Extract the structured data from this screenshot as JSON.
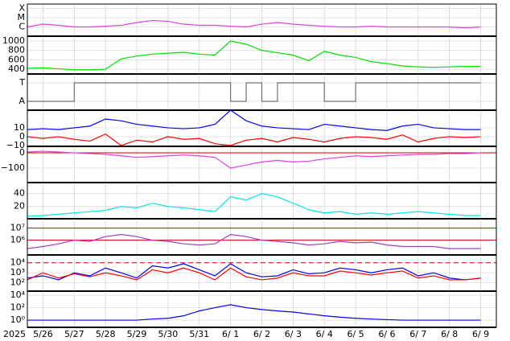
{
  "x_axis": {
    "year": "2025",
    "categories": [
      null,
      "5/26",
      null,
      "5/27",
      null,
      "5/28",
      null,
      "5/29",
      null,
      "5/30",
      null,
      "5/31",
      null,
      "6/ 1",
      null,
      "6/ 2",
      null,
      "6/ 3",
      null,
      "6/ 4",
      null,
      "6/ 5",
      null,
      "6/ 6",
      null,
      "6/ 7",
      null,
      "6/ 8",
      null,
      "6/ 9"
    ]
  },
  "chart_data": [
    {
      "type": "line",
      "log": true,
      "ylim": [
        1e-07,
        0.0003
      ],
      "yticks": [
        {
          "value": 0.0001,
          "label": "X"
        },
        {
          "value": 1e-05,
          "label": "M"
        },
        {
          "value": 1e-06,
          "label": "C"
        }
      ],
      "series": [
        {
          "color": "#e040e0",
          "values": [
            1e-06,
            2e-06,
            1.5e-06,
            1e-06,
            1e-06,
            1.2e-06,
            1.5e-06,
            3e-06,
            5e-06,
            4e-06,
            2e-06,
            1.5e-06,
            1.5e-06,
            1.2e-06,
            1e-06,
            2e-06,
            3e-06,
            2e-06,
            1.5e-06,
            1.2e-06,
            1e-06,
            1e-06,
            1.2e-06,
            1e-06,
            1e-06,
            1e-06,
            1e-06,
            1e-06,
            8e-07,
            1e-06
          ]
        }
      ]
    },
    {
      "type": "line",
      "ylim": [
        300,
        1100
      ],
      "yticks": [
        400,
        600,
        800,
        1000
      ],
      "series": [
        {
          "color": "#00e000",
          "values": [
            420,
            430,
            410,
            390,
            390,
            400,
            620,
            680,
            720,
            740,
            760,
            720,
            700,
            1000,
            930,
            800,
            750,
            700,
            580,
            780,
            700,
            650,
            560,
            520,
            470,
            450,
            440,
            450,
            460,
            460
          ]
        }
      ]
    },
    {
      "type": "line",
      "step": true,
      "ylim": [
        -0.48,
        1.48
      ],
      "yticks": [
        {
          "value": 1,
          "label": "T"
        },
        {
          "value": 0,
          "label": "A"
        }
      ],
      "series": [
        {
          "color": "#707070",
          "values": [
            0,
            0,
            0,
            1,
            1,
            1,
            1,
            1,
            1,
            1,
            1,
            1,
            1,
            0,
            1,
            0,
            1,
            1,
            1,
            0,
            0,
            1,
            1,
            1,
            1,
            1,
            1,
            1,
            1,
            1
          ]
        }
      ]
    },
    {
      "type": "line",
      "ylim": [
        -11,
        30
      ],
      "yticks": [
        10,
        0,
        {
          "value": -10,
          "label": "−10"
        }
      ],
      "series": [
        {
          "color": "#0000ff",
          "values": [
            8,
            9,
            8,
            10,
            12,
            20,
            18,
            14,
            12,
            10,
            9,
            10,
            14,
            30,
            18,
            12,
            10,
            9,
            8,
            14,
            12,
            10,
            8,
            7,
            12,
            14,
            10,
            9,
            8,
            8
          ]
        },
        {
          "color": "#ff0000",
          "values": [
            0,
            -2,
            0,
            -3,
            -5,
            3,
            -10,
            -4,
            -6,
            0,
            -3,
            -2,
            -8,
            -10,
            -4,
            -2,
            -6,
            -1,
            -3,
            -6,
            -2,
            0,
            -1,
            -3,
            2,
            -6,
            -2,
            0,
            -1,
            0
          ]
        }
      ]
    },
    {
      "type": "line",
      "ylim": [
        -195,
        42
      ],
      "yticks": [
        0,
        {
          "value": -100,
          "label": "−100"
        }
      ],
      "hlines": [
        0
      ],
      "hline_color": "#cc0000",
      "series": [
        {
          "color": "#e040e0",
          "values": [
            5,
            10,
            5,
            0,
            -5,
            -10,
            -20,
            -30,
            -25,
            -20,
            -15,
            -20,
            -30,
            -100,
            -80,
            -60,
            -50,
            -60,
            -55,
            -40,
            -30,
            -20,
            -25,
            -20,
            -15,
            -10,
            -10,
            -5,
            -5,
            0
          ]
        }
      ]
    },
    {
      "type": "line",
      "ylim": [
        1,
        57
      ],
      "yticks": [
        40,
        20
      ],
      "series": [
        {
          "color": "#00e8e8",
          "values": [
            5,
            6,
            8,
            10,
            12,
            14,
            20,
            18,
            25,
            20,
            18,
            15,
            12,
            35,
            30,
            40,
            35,
            25,
            15,
            10,
            12,
            8,
            10,
            8,
            10,
            12,
            10,
            8,
            6,
            6
          ]
        }
      ]
    },
    {
      "type": "line",
      "log": true,
      "ylim": [
        60000,
        60000000
      ],
      "yticks": [
        {
          "value": 10000000,
          "label": "10⁷"
        },
        {
          "value": 1000000,
          "label": "10⁶"
        }
      ],
      "hlines": [
        10000000,
        1000000
      ],
      "hline_color": "#cc0000",
      "series": [
        {
          "color": "#a040c0",
          "values": [
            200000,
            300000,
            500000,
            1000000,
            800000,
            2000000,
            3000000,
            2000000,
            1000000,
            800000,
            500000,
            400000,
            500000,
            3000000,
            2000000,
            1000000,
            800000,
            600000,
            400000,
            500000,
            800000,
            600000,
            700000,
            400000,
            300000,
            300000,
            300000,
            200000,
            200000,
            200000
          ]
        }
      ]
    },
    {
      "type": "line",
      "log": true,
      "ylim": [
        15,
        60000
      ],
      "yticks": [
        {
          "value": 10000,
          "label": "10⁴"
        },
        {
          "value": 1000,
          "label": "10³"
        },
        {
          "value": 100,
          "label": "10²"
        }
      ],
      "hlines": [
        10000
      ],
      "hline_color": "#dd0000",
      "hline_dash": true,
      "series": [
        {
          "color": "#0000ff",
          "values": [
            300,
            500,
            200,
            1000,
            500,
            3000,
            1000,
            300,
            5000,
            3000,
            8000,
            2000,
            500,
            8000,
            1000,
            400,
            500,
            2000,
            800,
            1000,
            3000,
            2000,
            1000,
            2000,
            3000,
            500,
            1000,
            300,
            200,
            300
          ]
        },
        {
          "color": "#ff0000",
          "values": [
            200,
            1000,
            300,
            800,
            400,
            1000,
            500,
            200,
            2000,
            1000,
            3000,
            1000,
            200,
            3000,
            400,
            200,
            300,
            1000,
            500,
            500,
            1500,
            1000,
            600,
            1000,
            1500,
            300,
            500,
            200,
            200,
            300
          ]
        }
      ]
    },
    {
      "type": "line",
      "log": true,
      "ylim": [
        0.07,
        45000
      ],
      "yticks": [
        {
          "value": 10000,
          "label": "10⁴"
        },
        {
          "value": 100,
          "label": "10²"
        },
        {
          "value": 1,
          "label": "10⁰"
        }
      ],
      "series": [
        {
          "color": "#0000ff",
          "values": [
            1,
            1,
            1,
            1,
            1,
            1,
            1,
            1,
            1.5,
            2,
            5,
            30,
            100,
            300,
            100,
            50,
            30,
            20,
            10,
            5,
            3,
            2,
            1.5,
            1.2,
            1,
            1,
            1,
            1,
            1,
            1
          ]
        }
      ]
    }
  ]
}
